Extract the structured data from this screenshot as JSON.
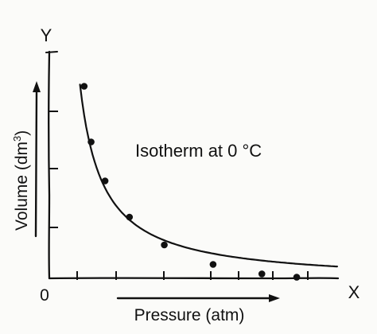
{
  "chart_data": {
    "type": "scatter",
    "title": "Isotherm at 0 °C",
    "xlabel": "Pressure (atm)",
    "ylabel_main": "Volume (dm",
    "ylabel_sup": "3",
    "ylabel_end": ")",
    "x_axis_letter": "X",
    "y_axis_letter": "Y",
    "origin_label": "0",
    "points": [
      {
        "x": 1.0,
        "y": 3.45
      },
      {
        "x": 1.2,
        "y": 2.45
      },
      {
        "x": 1.6,
        "y": 1.75
      },
      {
        "x": 2.3,
        "y": 1.1
      },
      {
        "x": 3.3,
        "y": 0.6
      },
      {
        "x": 4.7,
        "y": 0.25
      },
      {
        "x": 6.1,
        "y": 0.08
      },
      {
        "x": 7.1,
        "y": 0.02
      }
    ],
    "curve": "hyperbola",
    "xlim": [
      0,
      8.4
    ],
    "ylim": [
      0,
      4
    ],
    "grid": false
  }
}
